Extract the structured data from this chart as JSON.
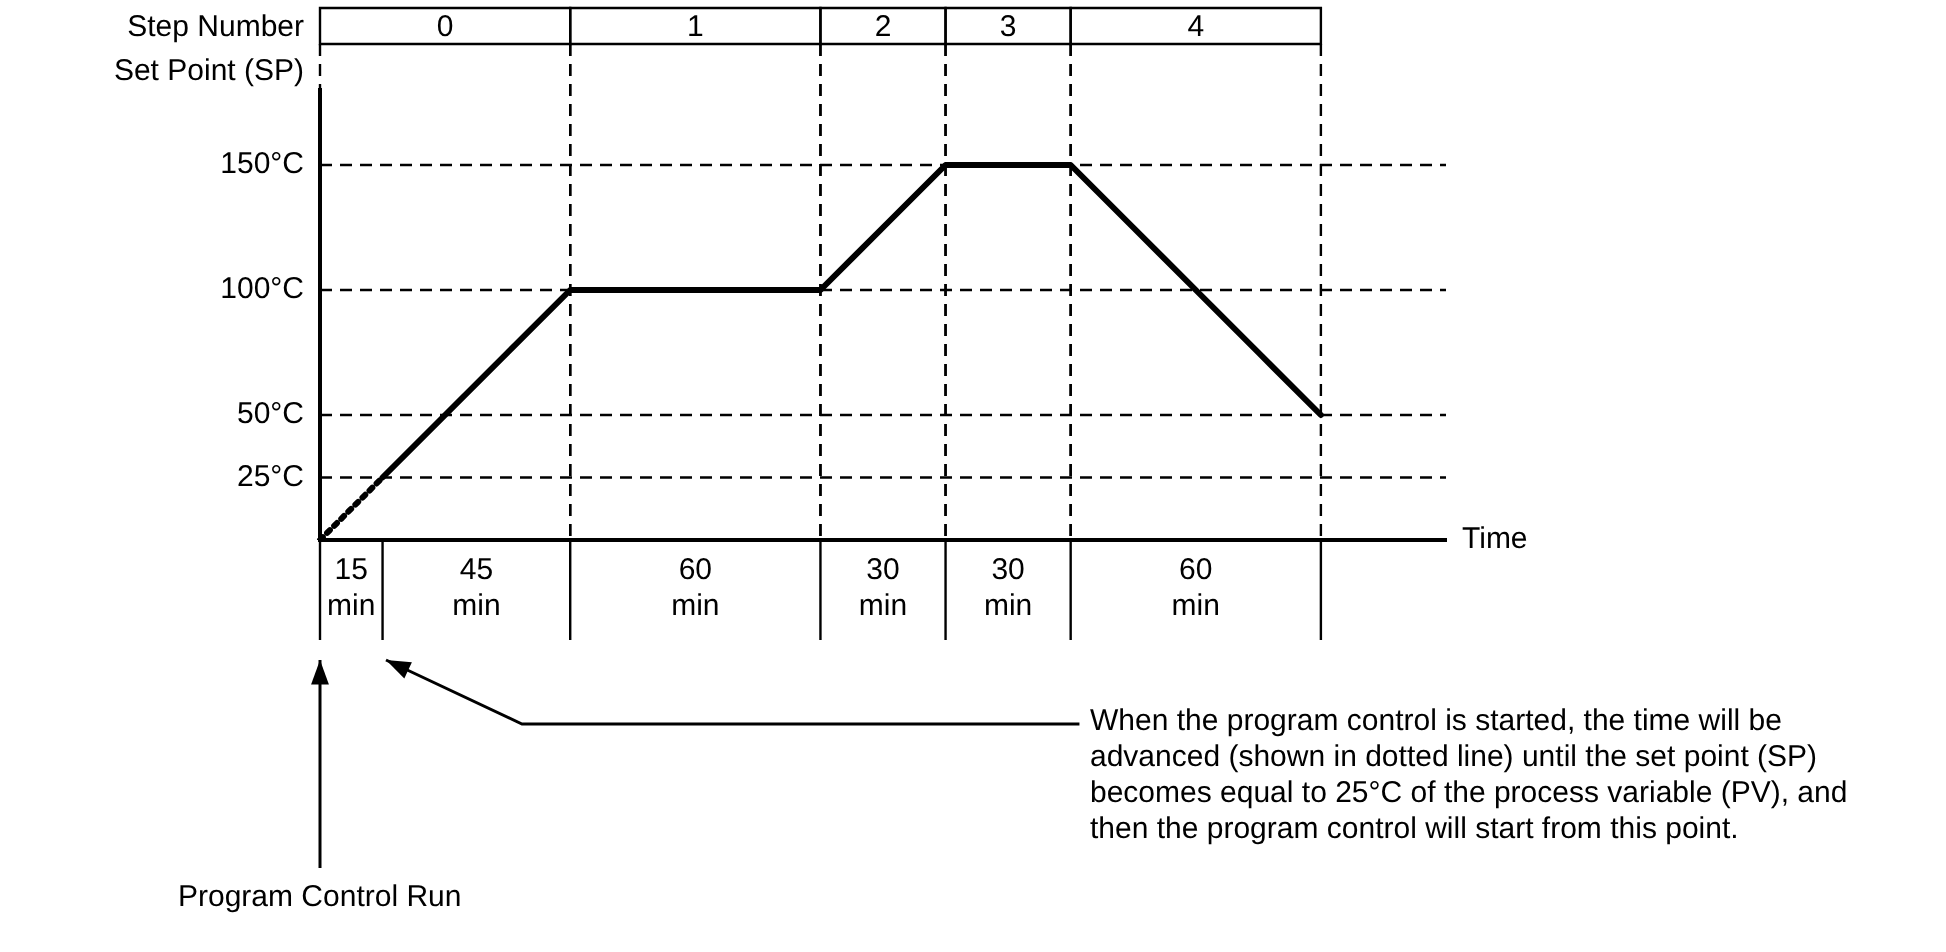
{
  "chart_data": {
    "type": "line",
    "xlabel": "Time",
    "ylabel": "Set Point (SP)",
    "categories": [
      null,
      null,
      null,
      null,
      null,
      null,
      null,
      null,
      null,
      null,
      null,
      null,
      null,
      null,
      null,
      null,
      null,
      null,
      null
    ],
    "ylim": [
      0,
      180
    ],
    "yticks": [
      {
        "value": 25,
        "label": "25°C"
      },
      {
        "value": 50,
        "label": "50°C"
      },
      {
        "value": 100,
        "label": "100°C"
      },
      {
        "value": 150,
        "label": "150°C"
      }
    ],
    "grid": true,
    "marker": "none",
    "line_style": "solid",
    "annotations": [
      "Step Number",
      "0",
      "1",
      "2",
      "3",
      "4",
      "15 min",
      "45 min",
      "60 min",
      "30 min",
      "30 min",
      "60 min",
      "Program Control Run",
      "When the program control is started, the time will be advanced (shown in dotted line) until the set point (SP) becomes equal to 25°C of the process variable (PV), and then the program control will start from this point."
    ],
    "series": [
      {
        "color": "#000000",
        "line_style": "dotted",
        "values": [
          0,
          25,
          null,
          null,
          null,
          null,
          null,
          null,
          null,
          null,
          null,
          null,
          null,
          null,
          null,
          null,
          null,
          null,
          null
        ]
      },
      {
        "color": "#000000",
        "values": [
          null,
          25,
          50,
          75,
          100,
          100,
          100,
          100,
          100,
          125,
          150,
          150,
          150,
          125,
          100,
          75,
          50,
          null,
          null
        ]
      }
    ]
  }
}
